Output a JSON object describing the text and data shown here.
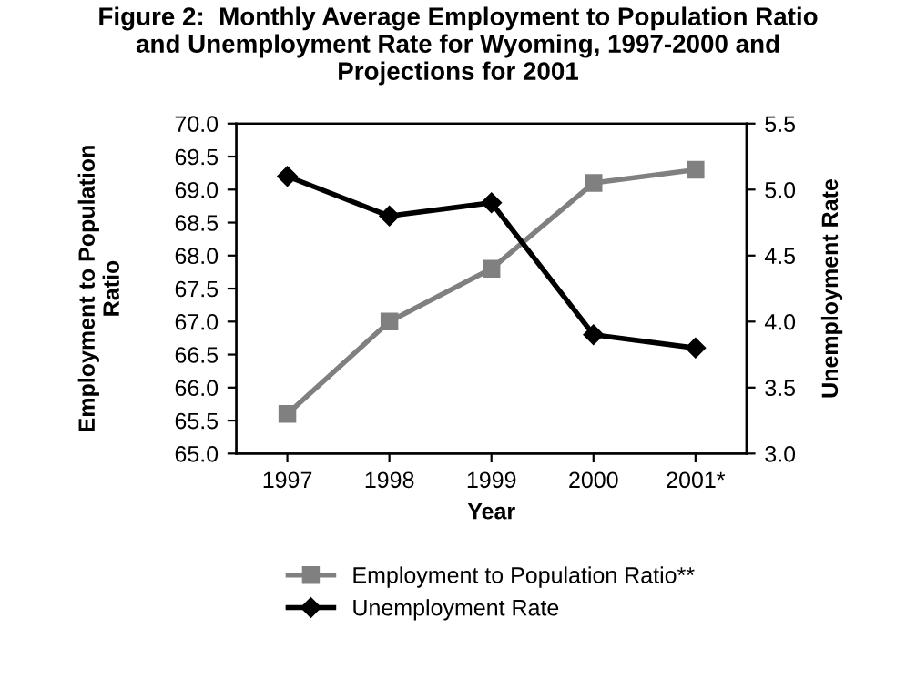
{
  "chart_data": {
    "type": "line",
    "title": "Figure 2:  Monthly Average Employment to Population Ratio\nand Unemployment Rate for Wyoming, 1997-2000 and\nProjections for 2001",
    "xlabel": "Year",
    "ylabel": "Employment to Population\nRatio",
    "y2label": "Unemployment Rate",
    "categories": [
      "1997",
      "1998",
      "1999",
      "2000",
      "2001*"
    ],
    "series": [
      {
        "name": "Employment to Population Ratio**",
        "color": "#808080",
        "values": [
          65.6,
          67.0,
          67.8,
          69.1,
          69.3
        ],
        "marker": "square"
      },
      {
        "name": "Unemployment Rate",
        "color": "#000000",
        "values": [
          5.1,
          4.8,
          4.9,
          3.9,
          3.8
        ],
        "marker": "diamond",
        "axis": "y2"
      }
    ],
    "ylim": [
      65,
      70
    ],
    "yticks": [
      {
        "value": 65,
        "label": "65.0"
      },
      {
        "value": 65.5,
        "label": "65.5"
      },
      {
        "value": 66,
        "label": "66.0"
      },
      {
        "value": 66.5,
        "label": "66.5"
      },
      {
        "value": 67,
        "label": "67.0"
      },
      {
        "value": 67.5,
        "label": "67.5"
      },
      {
        "value": 68,
        "label": "68.0"
      },
      {
        "value": 68.5,
        "label": "68.5"
      },
      {
        "value": 69,
        "label": "69.0"
      },
      {
        "value": 69.5,
        "label": "69.5"
      },
      {
        "value": 70,
        "label": "70.0"
      }
    ],
    "y2lim": [
      3,
      5.5
    ],
    "y2ticks": [
      {
        "value": 3,
        "label": "3.0"
      },
      {
        "value": 3.5,
        "label": "3.5"
      },
      {
        "value": 4,
        "label": "4.0"
      },
      {
        "value": 4.5,
        "label": "4.5"
      },
      {
        "value": 5,
        "label": "5.0"
      },
      {
        "value": 5.5,
        "label": "5.5"
      }
    ],
    "grid": false,
    "legend": "bottom",
    "line_style": "solid"
  }
}
